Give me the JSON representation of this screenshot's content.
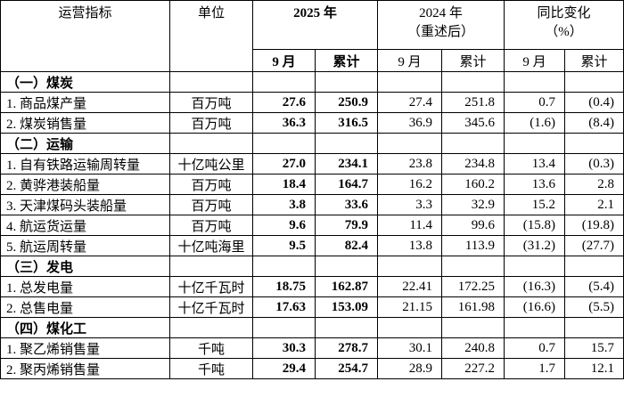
{
  "header": {
    "indicator": "运营指标",
    "unit": "单位",
    "y2025": "2025 年",
    "y2024": [
      "2024 年",
      "（重述后）"
    ],
    "yoy": [
      "同比变化",
      "（%）"
    ],
    "sub": [
      "9 月",
      "累计",
      "9 月",
      "累计",
      "9 月",
      "累计"
    ]
  },
  "sections": [
    {
      "title": "（一）煤炭",
      "rows": [
        [
          "1. 商品煤产量",
          "百万吨",
          "27.6",
          "250.9",
          "27.4",
          "251.8",
          "0.7",
          "(0.4)"
        ],
        [
          "2. 煤炭销售量",
          "百万吨",
          "36.3",
          "316.5",
          "36.9",
          "345.6",
          "(1.6)",
          "(8.4)"
        ]
      ]
    },
    {
      "title": "（二）运输",
      "rows": [
        [
          "1. 自有铁路运输周转量",
          "十亿吨公里",
          "27.0",
          "234.1",
          "23.8",
          "234.8",
          "13.4",
          "(0.3)"
        ],
        [
          "2. 黄骅港装船量",
          "百万吨",
          "18.4",
          "164.7",
          "16.2",
          "160.2",
          "13.6",
          "2.8"
        ],
        [
          "3. 天津煤码头装船量",
          "百万吨",
          "3.8",
          "33.6",
          "3.3",
          "32.9",
          "15.2",
          "2.1"
        ],
        [
          "4. 航运货运量",
          "百万吨",
          "9.6",
          "79.9",
          "11.4",
          "99.6",
          "(15.8)",
          "(19.8)"
        ],
        [
          "5. 航运周转量",
          "十亿吨海里",
          "9.5",
          "82.4",
          "13.8",
          "113.9",
          "(31.2)",
          "(27.7)"
        ]
      ]
    },
    {
      "title": "（三）发电",
      "rows": [
        [
          "1. 总发电量",
          "十亿千瓦时",
          "18.75",
          "162.87",
          "22.41",
          "172.25",
          "(16.3)",
          "(5.4)"
        ],
        [
          "2. 总售电量",
          "十亿千瓦时",
          "17.63",
          "153.09",
          "21.15",
          "161.98",
          "(16.6)",
          "(5.5)"
        ]
      ]
    },
    {
      "title": "（四）煤化工",
      "rows": [
        [
          "1. 聚乙烯销售量",
          "千吨",
          "30.3",
          "278.7",
          "30.1",
          "240.8",
          "0.7",
          "15.7"
        ],
        [
          "2. 聚丙烯销售量",
          "千吨",
          "29.4",
          "254.7",
          "28.9",
          "227.2",
          "1.7",
          "12.1"
        ]
      ]
    }
  ]
}
